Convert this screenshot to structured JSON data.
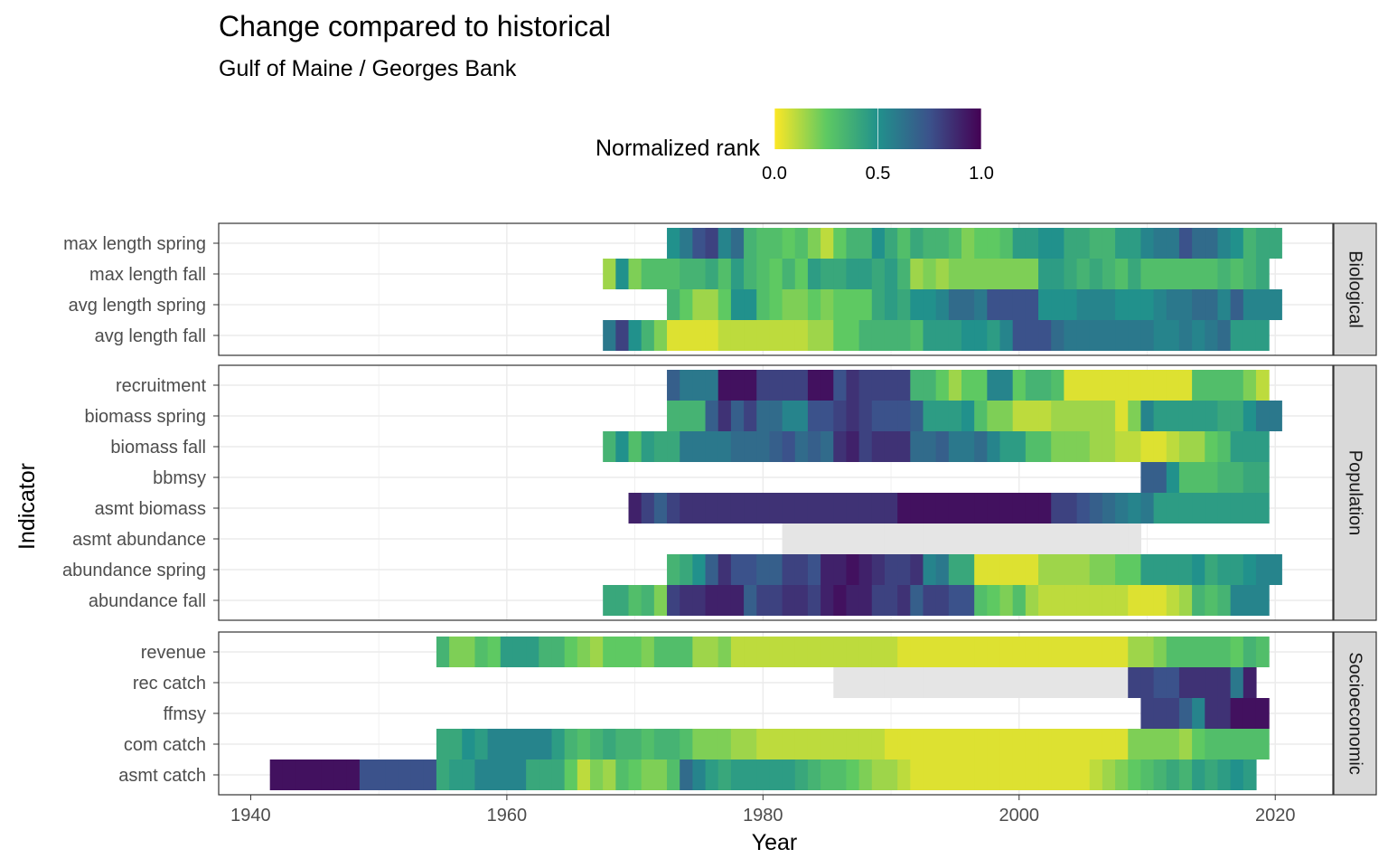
{
  "chart_data": {
    "type": "heatmap",
    "title": "Change compared to historical",
    "subtitle": "Gulf of Maine / Georges Bank",
    "xlabel": "Year",
    "ylabel": "Indicator",
    "xlim": [
      1937.5,
      2024.5
    ],
    "x_ticks": [
      1940,
      1960,
      1980,
      2000,
      2020
    ],
    "grid": true,
    "legend": {
      "title": "Normalized rank",
      "position": "top",
      "ticks": [
        "0.0",
        "0.5",
        "1.0"
      ],
      "colors": [
        "#fde725",
        "#5ec962",
        "#21918c",
        "#3b528b",
        "#440154"
      ]
    },
    "missing_color": "#e5e5e5",
    "panels": [
      {
        "name": "Biological",
        "rows": [
          {
            "label": "max length spring",
            "start": 1973,
            "values": [
              0.5,
              0.6,
              0.75,
              0.8,
              0.55,
              0.65,
              0.35,
              0.3,
              0.3,
              0.25,
              0.3,
              0.2,
              0.1,
              0.25,
              0.35,
              0.35,
              0.5,
              0.4,
              0.3,
              0.4,
              0.35,
              0.35,
              0.3,
              0.2,
              0.25,
              0.25,
              0.3,
              0.45,
              0.45,
              0.5,
              0.5,
              0.4,
              0.4,
              0.35,
              0.35,
              0.45,
              0.45,
              0.55,
              0.6,
              0.6,
              0.75,
              0.65,
              0.65,
              0.55,
              0.5,
              0.35,
              0.4,
              0.4
            ]
          },
          {
            "label": "max length fall",
            "start": 1968,
            "values": [
              0.15,
              0.5,
              0.2,
              0.3,
              0.3,
              0.3,
              0.35,
              0.35,
              0.4,
              0.3,
              0.45,
              0.35,
              0.3,
              0.25,
              0.35,
              0.25,
              0.45,
              0.4,
              0.4,
              0.45,
              0.45,
              0.4,
              0.45,
              0.35,
              0.15,
              0.2,
              0.15,
              0.2,
              0.2,
              0.2,
              0.2,
              0.2,
              0.2,
              0.2,
              0.45,
              0.45,
              0.4,
              0.35,
              0.4,
              0.35,
              0.3,
              0.4,
              0.3,
              0.3,
              0.3,
              0.3,
              0.3,
              0.3,
              0.35,
              0.3,
              0.35,
              0.4
            ]
          },
          {
            "label": "avg length spring",
            "start": 1973,
            "values": [
              0.35,
              0.25,
              0.15,
              0.15,
              0.25,
              0.5,
              0.5,
              0.3,
              0.25,
              0.2,
              0.2,
              0.25,
              0.2,
              0.25,
              0.25,
              0.25,
              0.4,
              0.45,
              0.4,
              0.5,
              0.5,
              0.55,
              0.65,
              0.65,
              0.6,
              0.75,
              0.75,
              0.75,
              0.75,
              0.5,
              0.5,
              0.5,
              0.55,
              0.55,
              0.55,
              0.5,
              0.5,
              0.5,
              0.55,
              0.6,
              0.6,
              0.65,
              0.65,
              0.55,
              0.7,
              0.55,
              0.55,
              0.55
            ]
          },
          {
            "label": "avg length fall",
            "start": 1968,
            "values": [
              0.6,
              0.8,
              0.5,
              0.35,
              0.2,
              0.05,
              0.05,
              0.05,
              0.05,
              0.1,
              0.1,
              0.1,
              0.1,
              0.1,
              0.1,
              0.1,
              0.15,
              0.15,
              0.25,
              0.25,
              0.35,
              0.35,
              0.35,
              0.35,
              0.3,
              0.45,
              0.45,
              0.45,
              0.5,
              0.5,
              0.45,
              0.55,
              0.75,
              0.75,
              0.75,
              0.65,
              0.6,
              0.6,
              0.6,
              0.6,
              0.6,
              0.6,
              0.6,
              0.55,
              0.55,
              0.6,
              0.55,
              0.6,
              0.65,
              0.45,
              0.45,
              0.45
            ]
          }
        ]
      },
      {
        "name": "Population",
        "rows": [
          {
            "label": "recruitment",
            "start": 1973,
            "values": [
              0.7,
              0.6,
              0.6,
              0.6,
              0.95,
              0.95,
              0.95,
              0.8,
              0.8,
              0.8,
              0.8,
              0.95,
              0.95,
              0.75,
              0.85,
              0.8,
              0.8,
              0.8,
              0.8,
              0.35,
              0.35,
              0.25,
              0.15,
              0.25,
              0.25,
              0.55,
              0.55,
              0.25,
              0.35,
              0.35,
              0.3,
              0.05,
              0.05,
              0.05,
              0.05,
              0.05,
              0.05,
              0.05,
              0.05,
              0.05,
              0.05,
              0.3,
              0.3,
              0.3,
              0.3,
              0.2,
              0.1
            ]
          },
          {
            "label": "biomass spring",
            "start": 1973,
            "values": [
              0.35,
              0.35,
              0.35,
              0.7,
              0.85,
              0.7,
              0.8,
              0.65,
              0.65,
              0.55,
              0.55,
              0.75,
              0.75,
              0.8,
              0.85,
              0.8,
              0.75,
              0.75,
              0.75,
              0.7,
              0.45,
              0.45,
              0.45,
              0.5,
              0.3,
              0.2,
              0.2,
              0.1,
              0.1,
              0.1,
              0.15,
              0.15,
              0.15,
              0.15,
              0.15,
              0.05,
              0.2,
              0.55,
              0.45,
              0.45,
              0.45,
              0.45,
              0.45,
              0.4,
              0.4,
              0.5,
              0.6,
              0.6
            ]
          },
          {
            "label": "biomass fall",
            "start": 1968,
            "values": [
              0.35,
              0.5,
              0.3,
              0.45,
              0.4,
              0.4,
              0.6,
              0.6,
              0.6,
              0.6,
              0.65,
              0.65,
              0.65,
              0.7,
              0.75,
              0.65,
              0.7,
              0.65,
              0.85,
              0.9,
              0.8,
              0.85,
              0.85,
              0.85,
              0.65,
              0.65,
              0.7,
              0.6,
              0.6,
              0.65,
              0.55,
              0.45,
              0.45,
              0.3,
              0.3,
              0.2,
              0.2,
              0.2,
              0.15,
              0.15,
              0.1,
              0.1,
              0.05,
              0.05,
              0.1,
              0.15,
              0.15,
              0.25,
              0.3,
              0.45,
              0.45,
              0.45
            ]
          },
          {
            "label": "bbmsy",
            "start": 2010,
            "values": [
              0.7,
              0.7,
              0.5,
              0.3,
              0.3,
              0.3,
              0.35,
              0.35,
              0.4,
              0.4
            ]
          },
          {
            "label": "asmt biomass",
            "start": 1970,
            "values": [
              0.9,
              0.8,
              0.7,
              0.8,
              0.85,
              0.85,
              0.85,
              0.85,
              0.85,
              0.85,
              0.85,
              0.85,
              0.85,
              0.85,
              0.85,
              0.85,
              0.85,
              0.85,
              0.85,
              0.85,
              0.85,
              0.95,
              0.95,
              0.95,
              0.95,
              0.95,
              0.95,
              0.95,
              0.95,
              0.95,
              0.95,
              0.95,
              0.95,
              0.8,
              0.8,
              0.75,
              0.7,
              0.65,
              0.6,
              0.55,
              0.6,
              0.45,
              0.45,
              0.45,
              0.45,
              0.45,
              0.45,
              0.45,
              0.45,
              0.45
            ]
          },
          {
            "label": "asmt abundance",
            "start": 1982,
            "values": [
              null,
              null,
              null,
              null,
              null,
              null,
              null,
              null,
              null,
              null,
              null,
              null,
              null,
              null,
              null,
              null,
              null,
              null,
              null,
              null,
              null,
              null,
              null,
              null,
              null,
              null,
              null,
              null
            ]
          },
          {
            "label": "abundance spring",
            "start": 1973,
            "values": [
              0.35,
              0.4,
              0.5,
              0.7,
              0.85,
              0.75,
              0.75,
              0.7,
              0.7,
              0.8,
              0.8,
              0.75,
              0.9,
              0.9,
              0.95,
              0.9,
              0.85,
              0.8,
              0.8,
              0.85,
              0.55,
              0.6,
              0.4,
              0.4,
              0.05,
              0.05,
              0.05,
              0.05,
              0.05,
              0.15,
              0.15,
              0.15,
              0.15,
              0.2,
              0.2,
              0.25,
              0.25,
              0.45,
              0.45,
              0.45,
              0.45,
              0.5,
              0.4,
              0.45,
              0.45,
              0.5,
              0.55,
              0.55
            ]
          },
          {
            "label": "abundance fall",
            "start": 1968,
            "values": [
              0.4,
              0.4,
              0.3,
              0.35,
              0.2,
              0.8,
              0.85,
              0.85,
              0.9,
              0.9,
              0.9,
              0.7,
              0.8,
              0.8,
              0.85,
              0.85,
              0.8,
              0.9,
              0.95,
              0.9,
              0.9,
              0.8,
              0.8,
              0.85,
              0.7,
              0.8,
              0.8,
              0.75,
              0.75,
              0.3,
              0.25,
              0.2,
              0.3,
              0.15,
              0.1,
              0.1,
              0.1,
              0.1,
              0.1,
              0.1,
              0.1,
              0.05,
              0.05,
              0.05,
              0.1,
              0.15,
              0.35,
              0.3,
              0.35,
              0.55,
              0.55,
              0.55
            ]
          }
        ]
      },
      {
        "name": "Socioeconomic",
        "rows": [
          {
            "label": "revenue",
            "start": 1955,
            "values": [
              0.35,
              0.2,
              0.2,
              0.3,
              0.25,
              0.45,
              0.45,
              0.45,
              0.35,
              0.35,
              0.25,
              0.2,
              0.15,
              0.25,
              0.25,
              0.25,
              0.2,
              0.3,
              0.3,
              0.3,
              0.15,
              0.15,
              0.2,
              0.1,
              0.1,
              0.1,
              0.1,
              0.1,
              0.1,
              0.1,
              0.1,
              0.1,
              0.1,
              0.1,
              0.1,
              0.1,
              0.05,
              0.05,
              0.05,
              0.05,
              0.05,
              0.05,
              0.05,
              0.05,
              0.05,
              0.05,
              0.05,
              0.05,
              0.05,
              0.05,
              0.05,
              0.05,
              0.05,
              0.05,
              0.15,
              0.15,
              0.2,
              0.3,
              0.3,
              0.3,
              0.3,
              0.3,
              0.25,
              0.35,
              0.3
            ]
          },
          {
            "label": "rec catch",
            "start": 1986,
            "values": [
              null,
              null,
              null,
              null,
              null,
              null,
              null,
              null,
              null,
              null,
              null,
              null,
              null,
              null,
              null,
              null,
              null,
              null,
              null,
              null,
              null,
              null,
              null,
              0.8,
              0.8,
              0.75,
              0.75,
              0.85,
              0.85,
              0.85,
              0.85,
              0.6,
              0.9
            ]
          },
          {
            "label": "ffmsy",
            "start": 2010,
            "values": [
              0.8,
              0.8,
              0.8,
              0.7,
              0.55,
              0.85,
              0.85,
              0.95,
              0.95,
              0.95
            ]
          },
          {
            "label": "com catch",
            "start": 1955,
            "values": [
              0.4,
              0.4,
              0.5,
              0.45,
              0.55,
              0.55,
              0.55,
              0.55,
              0.55,
              0.45,
              0.35,
              0.3,
              0.35,
              0.4,
              0.35,
              0.35,
              0.3,
              0.35,
              0.35,
              0.3,
              0.2,
              0.2,
              0.2,
              0.15,
              0.15,
              0.1,
              0.1,
              0.1,
              0.1,
              0.1,
              0.1,
              0.1,
              0.1,
              0.1,
              0.1,
              0.05,
              0.05,
              0.05,
              0.05,
              0.05,
              0.05,
              0.05,
              0.05,
              0.05,
              0.05,
              0.05,
              0.05,
              0.05,
              0.05,
              0.05,
              0.05,
              0.05,
              0.05,
              0.05,
              0.2,
              0.2,
              0.2,
              0.2,
              0.15,
              0.25,
              0.3,
              0.3,
              0.3,
              0.3,
              0.3
            ]
          },
          {
            "label": "asmt catch",
            "start": 1942,
            "values": [
              0.95,
              0.95,
              0.95,
              0.95,
              0.95,
              0.95,
              0.95,
              0.75,
              0.75,
              0.75,
              0.75,
              0.75,
              0.75,
              0.4,
              0.45,
              0.45,
              0.55,
              0.55,
              0.55,
              0.55,
              0.4,
              0.4,
              0.4,
              0.25,
              0.1,
              0.2,
              0.15,
              0.3,
              0.25,
              0.2,
              0.2,
              0.3,
              0.65,
              0.55,
              0.45,
              0.4,
              0.45,
              0.45,
              0.45,
              0.45,
              0.45,
              0.4,
              0.35,
              0.3,
              0.3,
              0.25,
              0.2,
              0.15,
              0.15,
              0.1,
              0.05,
              0.05,
              0.05,
              0.05,
              0.05,
              0.05,
              0.05,
              0.05,
              0.05,
              0.05,
              0.05,
              0.05,
              0.05,
              0.05,
              0.1,
              0.15,
              0.2,
              0.25,
              0.3,
              0.35,
              0.4,
              0.35,
              0.45,
              0.4,
              0.45,
              0.5,
              0.45
            ]
          }
        ]
      }
    ]
  }
}
